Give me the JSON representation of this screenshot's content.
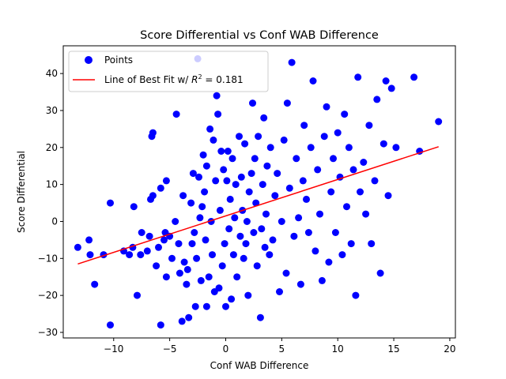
{
  "chart_data": {
    "type": "scatter",
    "title": "Score Differential vs Conf WAB Difference",
    "xlabel": "Conf WAB Difference",
    "ylabel": "Score Differential",
    "xlim": [
      -14.5,
      20.5
    ],
    "ylim": [
      -31.5,
      47.5
    ],
    "xticks": [
      -10,
      -5,
      0,
      5,
      10,
      15,
      20
    ],
    "yticks": [
      -30,
      -20,
      -10,
      0,
      10,
      20,
      30,
      40
    ],
    "grid": false,
    "legend_position": "top-left",
    "series": [
      {
        "name": "Points",
        "kind": "scatter",
        "color": "#0000ff",
        "points": [
          [
            -13.2,
            -7
          ],
          [
            -12.2,
            -5
          ],
          [
            -12.1,
            -9
          ],
          [
            -11.7,
            -17
          ],
          [
            -10.9,
            -9
          ],
          [
            -10.3,
            5
          ],
          [
            -9.1,
            -8
          ],
          [
            -10.3,
            -28
          ],
          [
            -8.6,
            -9
          ],
          [
            -8.2,
            4
          ],
          [
            -8.3,
            -7
          ],
          [
            -7.9,
            -20
          ],
          [
            -7.5,
            -3
          ],
          [
            -7.6,
            -9
          ],
          [
            -7.0,
            -8
          ],
          [
            -6.8,
            -4
          ],
          [
            -6.7,
            6
          ],
          [
            -6.6,
            23
          ],
          [
            -6.5,
            24
          ],
          [
            -6.5,
            7
          ],
          [
            -6.2,
            -12
          ],
          [
            -6.0,
            -7
          ],
          [
            -5.8,
            -28
          ],
          [
            -5.8,
            9
          ],
          [
            -5.5,
            -5
          ],
          [
            -5.4,
            -3
          ],
          [
            -5.3,
            11
          ],
          [
            -5.3,
            -15
          ],
          [
            -5.0,
            -4
          ],
          [
            -4.8,
            -10
          ],
          [
            -4.5,
            0
          ],
          [
            -4.4,
            29
          ],
          [
            -4.2,
            -6
          ],
          [
            -4.1,
            -14
          ],
          [
            -3.9,
            -27
          ],
          [
            -3.8,
            7
          ],
          [
            -3.7,
            -11
          ],
          [
            -3.5,
            -17
          ],
          [
            -3.4,
            -13
          ],
          [
            -3.3,
            -26
          ],
          [
            -3.1,
            5
          ],
          [
            -3.0,
            -6
          ],
          [
            -2.9,
            13
          ],
          [
            -2.8,
            -3
          ],
          [
            -2.7,
            -23
          ],
          [
            -2.6,
            -10
          ],
          [
            -2.5,
            44
          ],
          [
            -2.4,
            12
          ],
          [
            -2.3,
            1
          ],
          [
            -2.2,
            -16
          ],
          [
            -2.1,
            4
          ],
          [
            -2.0,
            18
          ],
          [
            -1.9,
            8
          ],
          [
            -1.8,
            -5
          ],
          [
            -1.7,
            15
          ],
          [
            -1.7,
            -23
          ],
          [
            -1.5,
            -15
          ],
          [
            -1.4,
            25
          ],
          [
            -1.3,
            0
          ],
          [
            -1.2,
            -9
          ],
          [
            -1.1,
            22
          ],
          [
            -1.0,
            -19
          ],
          [
            -0.9,
            11
          ],
          [
            -0.8,
            34
          ],
          [
            -0.7,
            29
          ],
          [
            -0.6,
            -18
          ],
          [
            -0.5,
            3
          ],
          [
            -0.4,
            19
          ],
          [
            -0.3,
            -12
          ],
          [
            -0.2,
            14
          ],
          [
            -0.1,
            -6
          ],
          [
            0.0,
            -23
          ],
          [
            0.1,
            11
          ],
          [
            0.2,
            19
          ],
          [
            0.3,
            -2
          ],
          [
            0.4,
            6
          ],
          [
            0.5,
            -21
          ],
          [
            0.6,
            17
          ],
          [
            0.7,
            -9
          ],
          [
            0.8,
            1
          ],
          [
            0.9,
            10
          ],
          [
            1.0,
            -15
          ],
          [
            1.2,
            23
          ],
          [
            1.3,
            -4
          ],
          [
            1.4,
            12
          ],
          [
            1.5,
            3
          ],
          [
            1.6,
            -10
          ],
          [
            1.7,
            21
          ],
          [
            1.8,
            -6
          ],
          [
            1.9,
            0
          ],
          [
            2.0,
            -20
          ],
          [
            2.1,
            8
          ],
          [
            2.3,
            13
          ],
          [
            2.4,
            32
          ],
          [
            2.5,
            -3
          ],
          [
            2.6,
            17
          ],
          [
            2.7,
            5
          ],
          [
            2.8,
            -12
          ],
          [
            2.9,
            23
          ],
          [
            3.1,
            -26
          ],
          [
            3.2,
            -2
          ],
          [
            3.3,
            10
          ],
          [
            3.4,
            28
          ],
          [
            3.5,
            -7
          ],
          [
            3.6,
            2
          ],
          [
            3.7,
            15
          ],
          [
            3.9,
            -9
          ],
          [
            4.0,
            20
          ],
          [
            4.2,
            -5
          ],
          [
            4.4,
            7
          ],
          [
            4.6,
            13
          ],
          [
            4.8,
            -19
          ],
          [
            5.0,
            0
          ],
          [
            5.2,
            22
          ],
          [
            5.4,
            -14
          ],
          [
            5.5,
            32
          ],
          [
            5.7,
            9
          ],
          [
            5.9,
            43
          ],
          [
            6.1,
            -4
          ],
          [
            6.3,
            17
          ],
          [
            6.5,
            1
          ],
          [
            6.7,
            -17
          ],
          [
            6.9,
            11
          ],
          [
            7.0,
            26
          ],
          [
            7.2,
            6
          ],
          [
            7.4,
            -3
          ],
          [
            7.6,
            20
          ],
          [
            7.8,
            38
          ],
          [
            8.0,
            -8
          ],
          [
            8.2,
            14
          ],
          [
            8.4,
            2
          ],
          [
            8.6,
            -16
          ],
          [
            8.8,
            23
          ],
          [
            9.0,
            31
          ],
          [
            9.2,
            -11
          ],
          [
            9.4,
            8
          ],
          [
            9.6,
            17
          ],
          [
            9.8,
            -3
          ],
          [
            10.0,
            24
          ],
          [
            10.2,
            12
          ],
          [
            10.4,
            -9
          ],
          [
            10.6,
            29
          ],
          [
            10.8,
            4
          ],
          [
            11.0,
            20
          ],
          [
            11.2,
            -6
          ],
          [
            11.4,
            14
          ],
          [
            11.6,
            -20
          ],
          [
            11.8,
            39
          ],
          [
            12.0,
            8
          ],
          [
            12.3,
            16
          ],
          [
            12.5,
            2
          ],
          [
            12.8,
            26
          ],
          [
            13.0,
            -6
          ],
          [
            13.3,
            11
          ],
          [
            13.5,
            33
          ],
          [
            13.8,
            -14
          ],
          [
            14.1,
            21
          ],
          [
            14.3,
            38
          ],
          [
            14.5,
            7
          ],
          [
            14.8,
            36
          ],
          [
            15.2,
            20
          ],
          [
            16.8,
            39
          ],
          [
            17.3,
            19
          ],
          [
            19.0,
            27
          ]
        ]
      },
      {
        "name": "Line of Best Fit w/ R² = 0.181",
        "kind": "line",
        "color": "#ff0000",
        "x_range": [
          -13.2,
          19.0
        ],
        "slope": 0.985,
        "intercept": 1.5
      }
    ]
  },
  "legend": {
    "points_label": "Points",
    "fit_label_prefix": "Line of Best Fit w/ ",
    "fit_label_var": "R",
    "fit_label_exp": "2",
    "fit_label_suffix": " = 0.181"
  }
}
